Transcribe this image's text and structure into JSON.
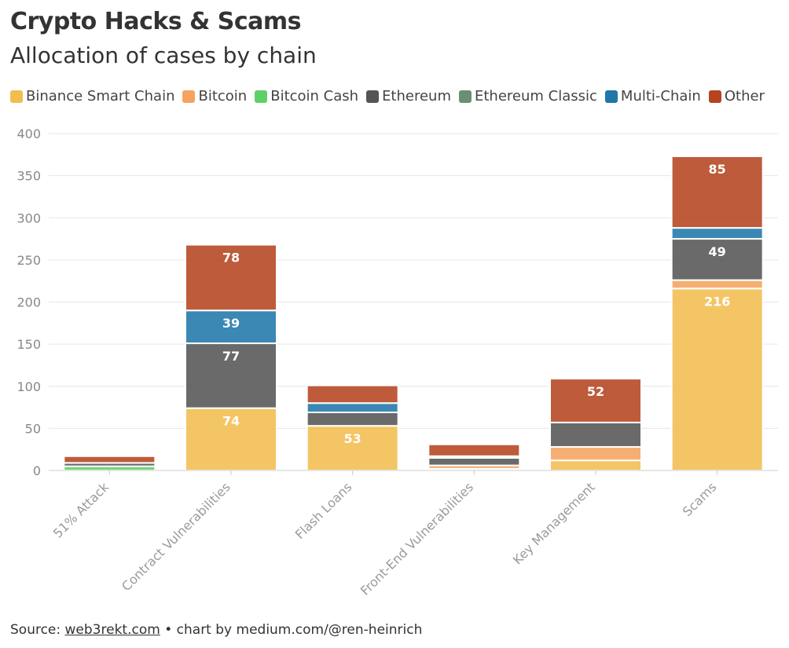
{
  "header": {
    "title": "Crypto Hacks & Scams",
    "subtitle": "Allocation of cases by chain"
  },
  "footer": {
    "source_label": "Source:",
    "source_link": "web3rekt.com",
    "credit": "• chart by medium.com/@ren-heinrich"
  },
  "chart_data": {
    "type": "bar",
    "stacked": true,
    "title": "Crypto Hacks & Scams",
    "subtitle": "Allocation of cases by chain",
    "xlabel": "",
    "ylabel": "",
    "ylim": [
      0,
      400
    ],
    "yticks": [
      0,
      50,
      100,
      150,
      200,
      250,
      300,
      350,
      400
    ],
    "grid": true,
    "legend_position": "top",
    "categories": [
      "51% Attack",
      "Contract Vulnerabilities",
      "Flash Loans",
      "Front-End Vulnerabilities",
      "Key Management",
      "Scams"
    ],
    "series": [
      {
        "name": "Binance Smart Chain",
        "color": "#f2bd4f",
        "values": [
          0,
          74,
          53,
          2,
          12,
          216
        ]
      },
      {
        "name": "Bitcoin",
        "color": "#f4a460",
        "values": [
          0,
          0,
          0,
          4,
          16,
          10
        ]
      },
      {
        "name": "Bitcoin Cash",
        "color": "#5fd068",
        "values": [
          5,
          0,
          0,
          0,
          0,
          0
        ]
      },
      {
        "name": "Ethereum",
        "color": "#555555",
        "values": [
          4,
          77,
          16,
          9,
          29,
          49
        ]
      },
      {
        "name": "Ethereum Classic",
        "color": "#6b8f71",
        "values": [
          0,
          0,
          0,
          0,
          0,
          0
        ]
      },
      {
        "name": "Multi-Chain",
        "color": "#1f77a8",
        "values": [
          0,
          39,
          11,
          2,
          0,
          13
        ]
      },
      {
        "name": "Other",
        "color": "#b5441f",
        "values": [
          8,
          78,
          21,
          14,
          52,
          85
        ]
      }
    ],
    "data_labels": [
      {
        "category": "Contract Vulnerabilities",
        "series": "Binance Smart Chain",
        "text": "74"
      },
      {
        "category": "Contract Vulnerabilities",
        "series": "Ethereum",
        "text": "77"
      },
      {
        "category": "Contract Vulnerabilities",
        "series": "Multi-Chain",
        "text": "39"
      },
      {
        "category": "Contract Vulnerabilities",
        "series": "Other",
        "text": "78"
      },
      {
        "category": "Flash Loans",
        "series": "Binance Smart Chain",
        "text": "53"
      },
      {
        "category": "Key Management",
        "series": "Other",
        "text": "52"
      },
      {
        "category": "Scams",
        "series": "Binance Smart Chain",
        "text": "216"
      },
      {
        "category": "Scams",
        "series": "Ethereum",
        "text": "49"
      },
      {
        "category": "Scams",
        "series": "Other",
        "text": "85"
      }
    ]
  }
}
